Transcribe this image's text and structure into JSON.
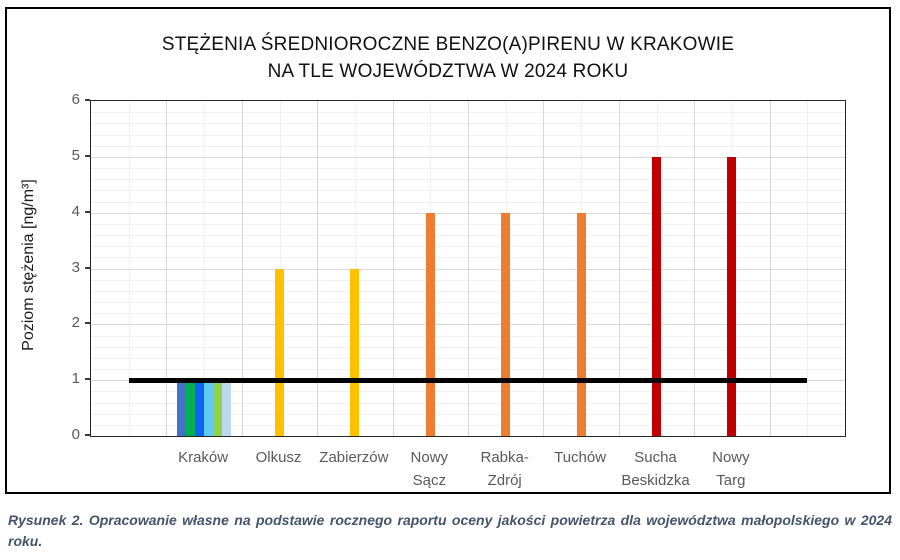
{
  "figure": {
    "caption": "Rysunek 2. Opracowanie własne na podstawie rocznego raportu oceny jakości powietrza dla województwa małopolskiego w 2024 roku."
  },
  "chart_data": {
    "type": "bar",
    "title": [
      "STĘŻENIA ŚREDNIOROCZNE BENZO(A)PIRENU W KRAKOWIE",
      "NA TLE WOJEWÓDZTWA W 2024 ROKU"
    ],
    "xlabel": "",
    "ylabel": "Poziom stężenia [ng/m³]",
    "ylim": [
      0,
      6
    ],
    "ytick_step": 1,
    "minor_ytick_step": 0.2,
    "grid": true,
    "legend_position": "none",
    "categories": [
      "Kraków",
      "Olkusz",
      "Zabierzów",
      "Nowy Sącz",
      "Rabka-Zdrój",
      "Tuchów",
      "Sucha Beskidzka",
      "Nowy Targ"
    ],
    "category_label_lines": [
      [
        "Kraków"
      ],
      [
        "Olkusz"
      ],
      [
        "Zabierzów"
      ],
      [
        "Nowy",
        "Sącz"
      ],
      [
        "Rabka-",
        "Zdrój"
      ],
      [
        "Tuchów"
      ],
      [
        "Sucha",
        "Beskidzka"
      ],
      [
        "Nowy",
        "Targ"
      ]
    ],
    "groups": [
      {
        "category": "Kraków",
        "values": [
          1,
          1,
          1,
          1,
          1,
          1
        ],
        "colors": [
          "#4472C4",
          "#00B050",
          "#0B64F0",
          "#5FC9F8",
          "#92D050",
          "#BDD7EE"
        ]
      },
      {
        "category": "Olkusz",
        "values": [
          3
        ],
        "colors": [
          "#FFC000"
        ]
      },
      {
        "category": "Zabierzów",
        "values": [
          3
        ],
        "colors": [
          "#FFC000"
        ]
      },
      {
        "category": "Nowy Sącz",
        "values": [
          4
        ],
        "colors": [
          "#ED7D31"
        ]
      },
      {
        "category": "Rabka-Zdrój",
        "values": [
          4
        ],
        "colors": [
          "#ED7D31"
        ]
      },
      {
        "category": "Tuchów",
        "values": [
          4
        ],
        "colors": [
          "#ED7D31"
        ]
      },
      {
        "category": "Sucha Beskidzka",
        "values": [
          5
        ],
        "colors": [
          "#C00000"
        ]
      },
      {
        "category": "Nowy Targ",
        "values": [
          5
        ],
        "colors": [
          "#C00000"
        ]
      }
    ],
    "reference_line": {
      "value": 1,
      "color": "#000000"
    },
    "axis_text_color": "#595959",
    "gridline_minor_color": "#F0F0F0",
    "gridline_major_color": "#D8D8D8"
  }
}
